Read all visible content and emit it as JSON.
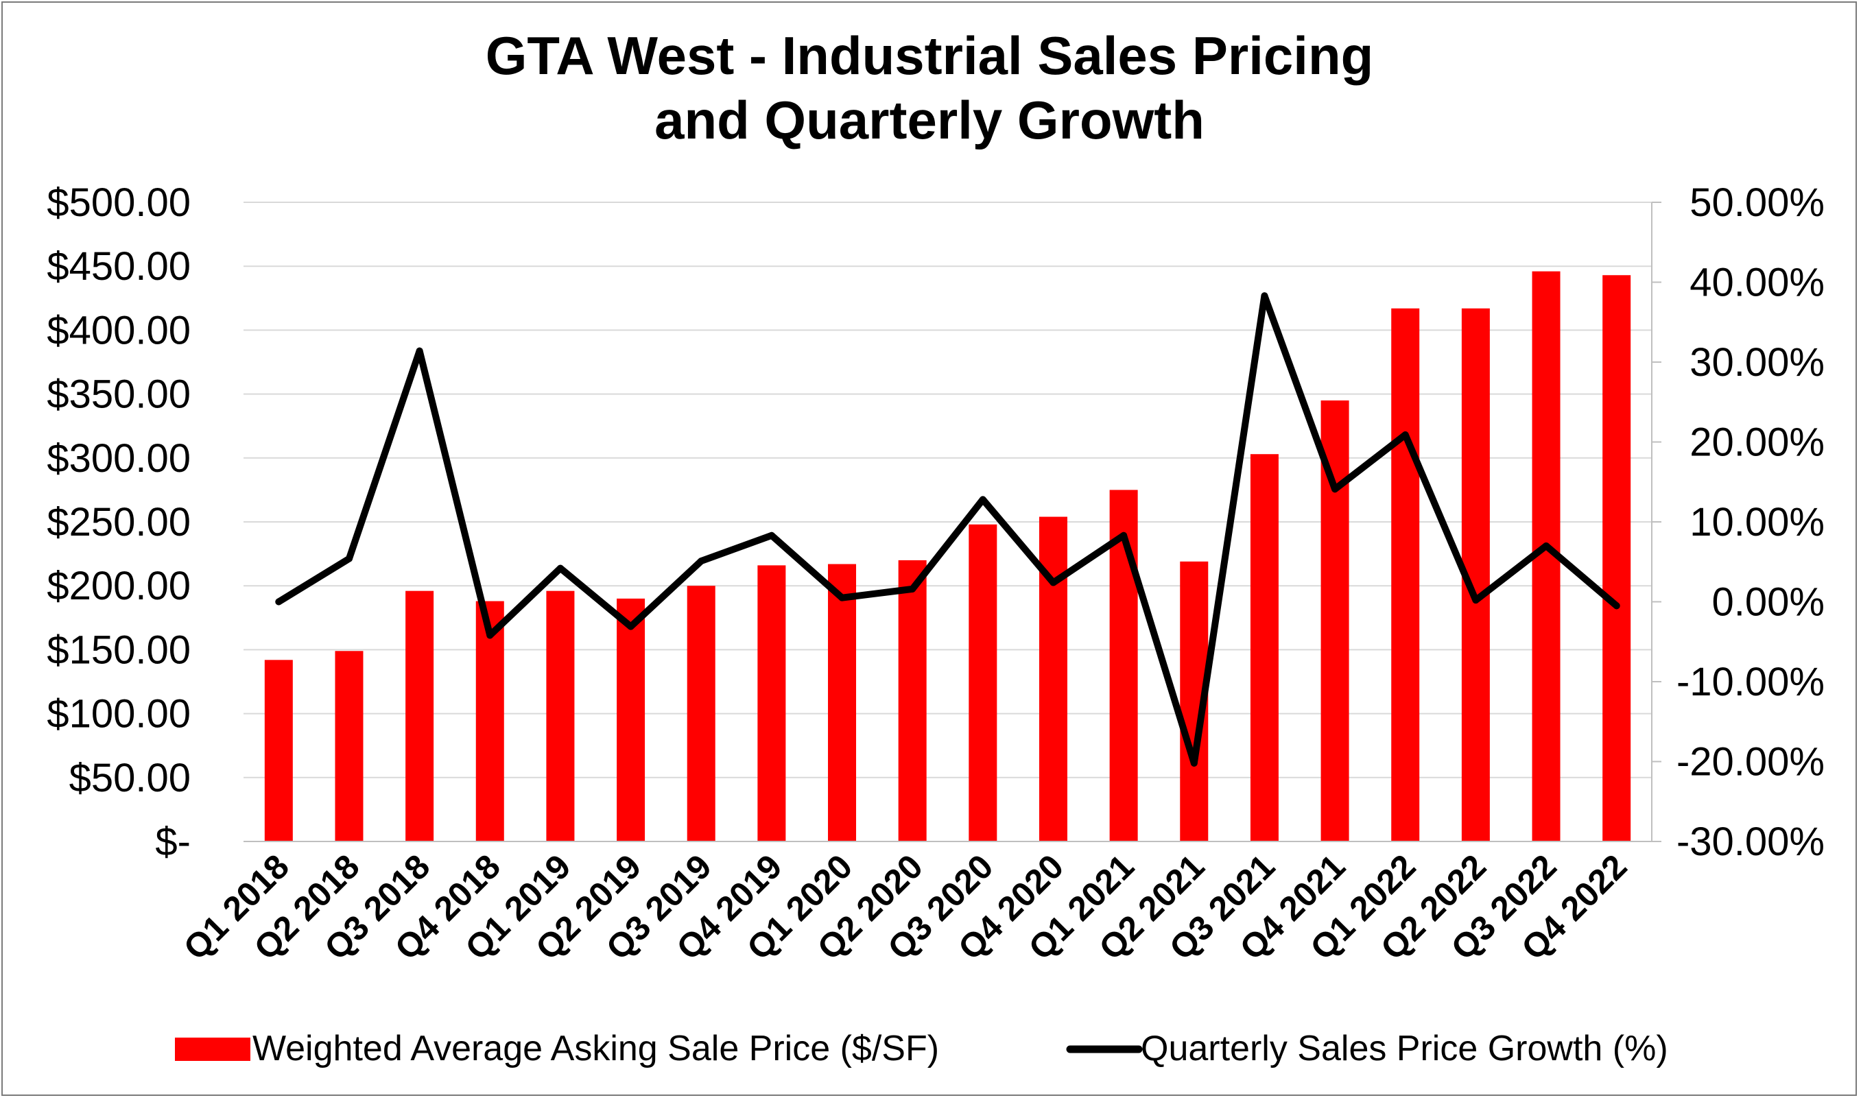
{
  "chart_data": {
    "type": "bar+line",
    "title": {
      "line1": "GTA West - Industrial Sales Pricing",
      "line2": "and Quarterly Growth"
    },
    "categories": [
      "Q1 2018",
      "Q2 2018",
      "Q3 2018",
      "Q4 2018",
      "Q1 2019",
      "Q2 2019",
      "Q3 2019",
      "Q4 2019",
      "Q1 2020",
      "Q2 2020",
      "Q3 2020",
      "Q4 2020",
      "Q1 2021",
      "Q2 2021",
      "Q3 2021",
      "Q4 2021",
      "Q1 2022",
      "Q2 2022",
      "Q3 2022",
      "Q4 2022"
    ],
    "series": [
      {
        "name": "Weighted Average Asking Sale Price ($/SF)",
        "type": "bar",
        "axis": "left",
        "color": "#ff0000",
        "values": [
          142,
          149,
          196,
          188,
          196,
          190,
          200,
          216,
          217,
          220,
          248,
          254,
          275,
          219,
          303,
          345,
          417,
          417,
          446,
          443
        ]
      },
      {
        "name": "Quarterly Sales Price Growth (%)",
        "type": "line",
        "axis": "right",
        "color": "#000000",
        "values": [
          0.0,
          5.4,
          31.4,
          -4.2,
          4.2,
          -3.1,
          5.1,
          8.3,
          0.5,
          1.6,
          12.8,
          2.4,
          8.3,
          -20.2,
          38.3,
          14.1,
          20.9,
          0.2,
          7.0,
          -0.5
        ]
      }
    ],
    "y_left": {
      "ylim": [
        0,
        500
      ],
      "ticks": [
        0,
        50,
        100,
        150,
        200,
        250,
        300,
        350,
        400,
        450,
        500
      ],
      "tick_labels": [
        "$-",
        "$50.00",
        "$100.00",
        "$150.00",
        "$200.00",
        "$250.00",
        "$300.00",
        "$350.00",
        "$400.00",
        "$450.00",
        "$500.00"
      ]
    },
    "y_right": {
      "ylim": [
        -30,
        50
      ],
      "ticks": [
        -30,
        -20,
        -10,
        0,
        10,
        20,
        30,
        40,
        50
      ],
      "tick_labels": [
        "-30.00%",
        "-20.00%",
        "-10.00%",
        "0.00%",
        "10.00%",
        "20.00%",
        "30.00%",
        "40.00%",
        "50.00%"
      ]
    },
    "grid": "horizontal",
    "legend_position": "bottom"
  }
}
